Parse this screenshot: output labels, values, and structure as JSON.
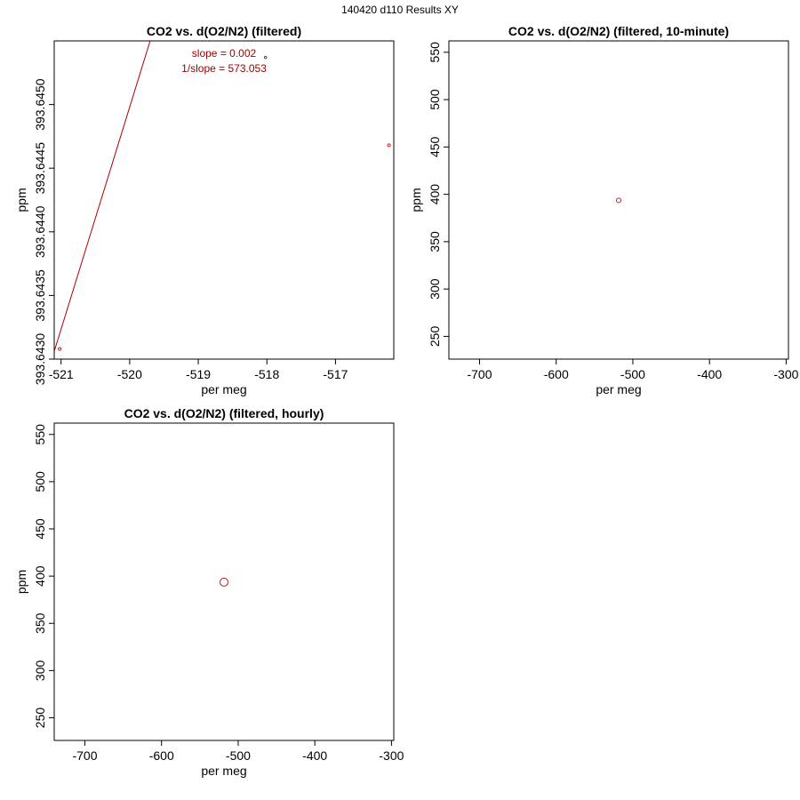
{
  "page_title": "140420   d110   Results XY",
  "colors": {
    "points": "#b22222",
    "fit_line": "#aa0000",
    "annotation": "#990000"
  },
  "chart_data": [
    {
      "type": "scatter",
      "title": "CO2 vs. d(O2/N2) (filtered)",
      "xlabel": "per meg",
      "ylabel": "ppm",
      "xlim": [
        -521.1,
        -516.15
      ],
      "ylim": [
        393.643,
        393.6455
      ],
      "xticks": [
        -521,
        -520,
        -519,
        -518,
        -517
      ],
      "yticks": [
        393.643,
        393.6435,
        393.644,
        393.6445,
        393.645
      ],
      "ytick_labels": [
        "393.6430",
        "393.6435",
        "393.6440",
        "393.6445",
        "393.6450"
      ],
      "points": [
        {
          "x": -521.02,
          "y": 393.64308,
          "r": 1.6
        },
        {
          "x": -516.22,
          "y": 393.64468,
          "r": 1.6
        },
        {
          "x": -518.02,
          "y": 393.64537,
          "r": 1.2
        }
      ],
      "fit": {
        "slope": 0.001745,
        "intercept": 394.55238
      },
      "annotations": [
        "slope = 0.002",
        "1/slope = 573.053"
      ]
    },
    {
      "type": "scatter",
      "title": "CO2 vs. d(O2/N2) (filtered, 10-minute)",
      "xlabel": "per meg",
      "ylabel": "ppm",
      "xlim": [
        -740,
        -297
      ],
      "ylim": [
        226,
        562
      ],
      "xticks": [
        -700,
        -600,
        -500,
        -400,
        -300
      ],
      "yticks": [
        250,
        300,
        350,
        400,
        450,
        500,
        550
      ],
      "ytick_labels": [
        "250",
        "300",
        "350",
        "400",
        "450",
        "500",
        "550"
      ],
      "points": [
        {
          "x": -518.5,
          "y": 393.6,
          "r": 2.5
        }
      ]
    },
    {
      "type": "scatter",
      "title": "CO2 vs. d(O2/N2) (filtered, hourly)",
      "xlabel": "per meg",
      "ylabel": "ppm",
      "xlim": [
        -740,
        -297
      ],
      "ylim": [
        226,
        562
      ],
      "xticks": [
        -700,
        -600,
        -500,
        -400,
        -300
      ],
      "yticks": [
        250,
        300,
        350,
        400,
        450,
        500,
        550
      ],
      "ytick_labels": [
        "250",
        "300",
        "350",
        "400",
        "450",
        "500",
        "550"
      ],
      "points": [
        {
          "x": -518.5,
          "y": 393.6,
          "r": 4.5
        }
      ]
    }
  ]
}
